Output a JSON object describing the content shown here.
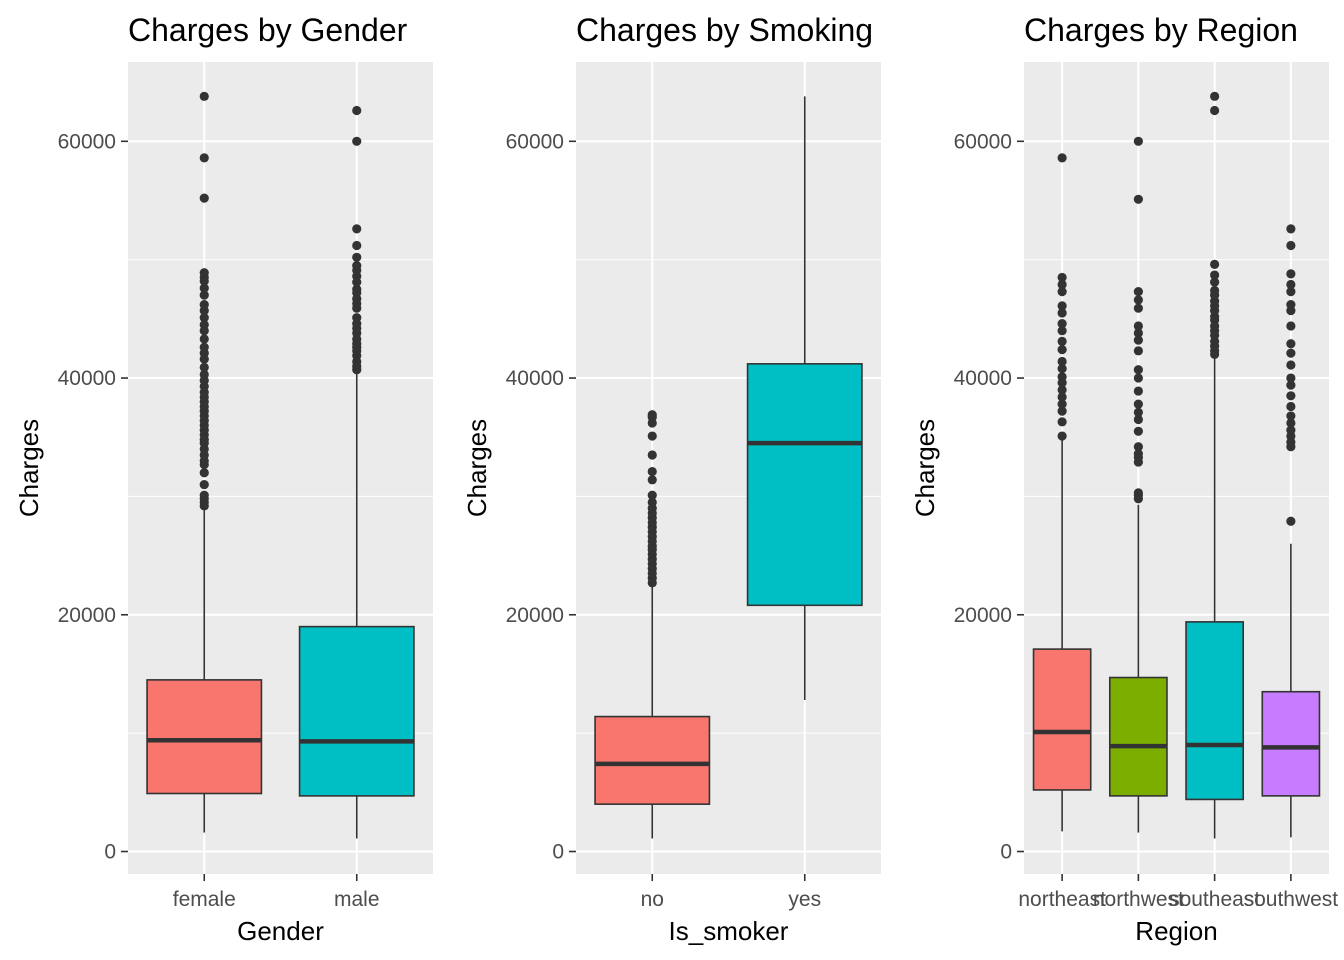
{
  "chart_data": [
    {
      "type": "box",
      "title": "Charges by Gender",
      "xlabel": "Gender",
      "ylabel": "Charges",
      "ylim": [
        -1900,
        66700
      ],
      "yticks": [
        0,
        20000,
        40000,
        60000
      ],
      "grid": true,
      "legend": "none",
      "categories": [
        "female",
        "male"
      ],
      "colors": [
        "#F8766D",
        "#00BFC4"
      ],
      "boxes": [
        {
          "category": "female",
          "min": 1600,
          "q1": 4900,
          "median": 9400,
          "q3": 14500,
          "max": 29000,
          "outliers": [
            29200,
            29500,
            29800,
            30100,
            31000,
            32000,
            32700,
            33000,
            33500,
            34000,
            34500,
            34800,
            35200,
            35600,
            36000,
            36400,
            36800,
            37200,
            37600,
            38000,
            38400,
            38800,
            39300,
            39800,
            40300,
            40900,
            41600,
            42100,
            42600,
            43300,
            44000,
            44500,
            45100,
            45700,
            46200,
            47000,
            47600,
            48200,
            48500,
            48900,
            55200,
            58600,
            63800
          ]
        },
        {
          "category": "male",
          "min": 1100,
          "q1": 4700,
          "median": 9300,
          "q3": 19000,
          "max": 40500,
          "outliers": [
            40700,
            41000,
            41400,
            41900,
            42300,
            42600,
            42900,
            43300,
            43800,
            44200,
            44600,
            45100,
            45900,
            46300,
            46700,
            47200,
            47500,
            48100,
            48600,
            49100,
            49500,
            50200,
            51200,
            52600,
            60000,
            62600
          ]
        }
      ]
    },
    {
      "type": "box",
      "title": "Charges by Smoking",
      "xlabel": "Is_smoker",
      "ylabel": "Charges",
      "ylim": [
        -1900,
        66700
      ],
      "yticks": [
        0,
        20000,
        40000,
        60000
      ],
      "grid": true,
      "legend": "none",
      "categories": [
        "no",
        "yes"
      ],
      "colors": [
        "#F8766D",
        "#00BFC4"
      ],
      "boxes": [
        {
          "category": "no",
          "min": 1100,
          "q1": 4000,
          "median": 7400,
          "q3": 11400,
          "max": 22500,
          "outliers": [
            22700,
            23100,
            23500,
            23900,
            24300,
            24700,
            25100,
            25500,
            25800,
            26200,
            26600,
            27000,
            27400,
            27800,
            28200,
            28600,
            29000,
            29500,
            30100,
            31400,
            32100,
            33500,
            35100,
            36200,
            36700,
            36900
          ]
        },
        {
          "category": "yes",
          "min": 12800,
          "q1": 20800,
          "median": 34500,
          "q3": 41200,
          "max": 63800,
          "outliers": []
        }
      ]
    },
    {
      "type": "box",
      "title": "Charges by Region",
      "xlabel": "Region",
      "ylabel": "Charges",
      "ylim": [
        -1900,
        66700
      ],
      "yticks": [
        0,
        20000,
        40000,
        60000
      ],
      "grid": true,
      "legend": "none",
      "categories": [
        "northeast",
        "northwest",
        "southeast",
        "southwest"
      ],
      "colors": [
        "#F8766D",
        "#7CAE00",
        "#00BFC4",
        "#C77CFF"
      ],
      "boxes": [
        {
          "category": "northeast",
          "min": 1700,
          "q1": 5200,
          "median": 10100,
          "q3": 17100,
          "max": 35000,
          "outliers": [
            35100,
            36300,
            37200,
            37800,
            38400,
            39000,
            39600,
            40100,
            40800,
            41400,
            42400,
            43100,
            44000,
            44600,
            45500,
            46100,
            47300,
            47900,
            48500,
            58600
          ]
        },
        {
          "category": "northwest",
          "min": 1600,
          "q1": 4700,
          "median": 8900,
          "q3": 14700,
          "max": 29300,
          "outliers": [
            29800,
            30100,
            30300,
            32900,
            33300,
            33600,
            34200,
            35500,
            36500,
            37100,
            37800,
            38900,
            40000,
            40700,
            42300,
            43200,
            43800,
            44400,
            45900,
            46600,
            47300,
            55100,
            60000
          ]
        },
        {
          "category": "southeast",
          "min": 1100,
          "q1": 4400,
          "median": 9000,
          "q3": 19400,
          "max": 41700,
          "outliers": [
            42000,
            42300,
            42700,
            43100,
            43600,
            44000,
            44400,
            44900,
            45200,
            45700,
            46100,
            46500,
            47000,
            47400,
            48100,
            48700,
            49600,
            62600,
            63800
          ]
        },
        {
          "category": "southwest",
          "min": 1200,
          "q1": 4700,
          "median": 8800,
          "q3": 13500,
          "max": 26000,
          "outliers": [
            27900,
            34200,
            34600,
            35100,
            35600,
            36200,
            36800,
            37600,
            38500,
            39400,
            40000,
            41100,
            42100,
            42900,
            44400,
            45700,
            46200,
            47300,
            47900,
            48800,
            51200,
            52600
          ]
        }
      ]
    }
  ]
}
